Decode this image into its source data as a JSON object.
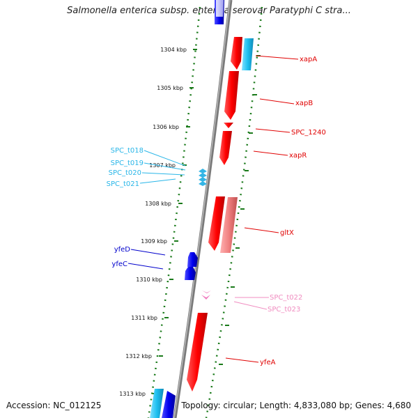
{
  "title": "Salmonella enterica subsp. enterica serovar Paratyphi C stra...",
  "footer": {
    "accession": "Accession: NC_012125",
    "topology": "Topology: circular; Length: 4,833,080 bp; Genes: 4,680"
  },
  "colors": {
    "backbone": "#808080",
    "ruler": "#1a7a1a",
    "cds_forward": "#ff0000",
    "cds_reverse": "#1010e0",
    "trna": "#33b5e5",
    "pseudo": "#f08080",
    "ncrna": "#f07bbf"
  },
  "ticks": [
    "1304 kbp",
    "1305 kbp",
    "1306 kbp",
    "1307 kbp",
    "1308 kbp",
    "1309 kbp",
    "1310 kbp",
    "1311 kbp",
    "1312 kbp",
    "1313 kbp"
  ],
  "genes": [
    {
      "label": "xapA",
      "color": "#e00000"
    },
    {
      "label": "xapB",
      "color": "#e00000"
    },
    {
      "label": "SPC_1240",
      "color": "#e00000"
    },
    {
      "label": "xapR",
      "color": "#e00000"
    },
    {
      "label": "SPC_t018",
      "color": "#29b6e8"
    },
    {
      "label": "SPC_t019",
      "color": "#29b6e8"
    },
    {
      "label": "SPC_t020",
      "color": "#29b6e8"
    },
    {
      "label": "SPC_t021",
      "color": "#29b6e8"
    },
    {
      "label": "gltX",
      "color": "#e00000"
    },
    {
      "label": "yfeD",
      "color": "#0000cc"
    },
    {
      "label": "yfeC",
      "color": "#0000cc"
    },
    {
      "label": "SPC_t022",
      "color": "#f08cc0"
    },
    {
      "label": "SPC_t023",
      "color": "#f08cc0"
    },
    {
      "label": "yfeA",
      "color": "#e00000"
    }
  ]
}
